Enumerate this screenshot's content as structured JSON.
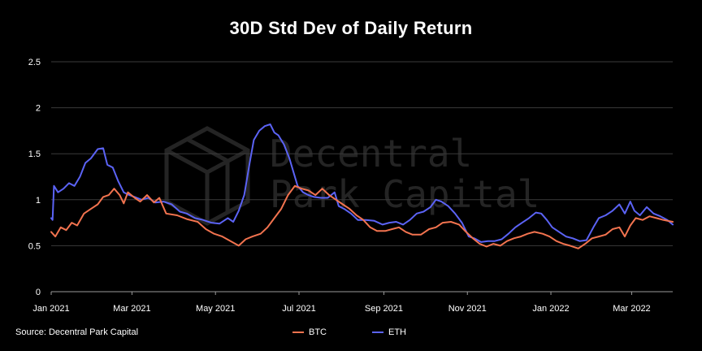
{
  "chart_data": {
    "type": "line",
    "title": "30D Std Dev of Daily Return",
    "xlabel": "",
    "ylabel": "",
    "source": "Source: Decentral Park Capital",
    "watermark": [
      "Decentral",
      "Park Capital"
    ],
    "ylim": [
      0,
      2.5
    ],
    "yticks": [
      "0",
      "0.5",
      "1",
      "1.5",
      "2",
      "2.5"
    ],
    "xticks": [
      {
        "label": "Jan 2021",
        "date": "2021-01-01"
      },
      {
        "label": "Mar 2021",
        "date": "2021-03-01"
      },
      {
        "label": "May 2021",
        "date": "2021-05-01"
      },
      {
        "label": "Jul 2021",
        "date": "2021-07-01"
      },
      {
        "label": "Sep 2021",
        "date": "2021-09-01"
      },
      {
        "label": "Nov 2021",
        "date": "2021-11-01"
      },
      {
        "label": "Jan 2022",
        "date": "2022-01-01"
      },
      {
        "label": "Mar 2022",
        "date": "2022-03-01"
      }
    ],
    "xlim": [
      "2021-01-01",
      "2022-03-31"
    ],
    "grid": "horizontal",
    "legend": "bottom-center",
    "series": [
      {
        "name": "BTC",
        "color": "#f2734f",
        "points": [
          [
            "2021-01-01",
            0.65
          ],
          [
            "2021-01-04",
            0.6
          ],
          [
            "2021-01-08",
            0.7
          ],
          [
            "2021-01-12",
            0.67
          ],
          [
            "2021-01-16",
            0.75
          ],
          [
            "2021-01-20",
            0.72
          ],
          [
            "2021-01-25",
            0.85
          ],
          [
            "2021-01-30",
            0.9
          ],
          [
            "2021-02-04",
            0.95
          ],
          [
            "2021-02-08",
            1.03
          ],
          [
            "2021-02-12",
            1.05
          ],
          [
            "2021-02-16",
            1.12
          ],
          [
            "2021-02-20",
            1.05
          ],
          [
            "2021-02-23",
            0.96
          ],
          [
            "2021-02-26",
            1.08
          ],
          [
            "2021-03-03",
            1.02
          ],
          [
            "2021-03-07",
            0.98
          ],
          [
            "2021-03-12",
            1.05
          ],
          [
            "2021-03-17",
            0.97
          ],
          [
            "2021-03-21",
            1.02
          ],
          [
            "2021-03-26",
            0.85
          ],
          [
            "2021-04-03",
            0.83
          ],
          [
            "2021-04-10",
            0.79
          ],
          [
            "2021-04-18",
            0.76
          ],
          [
            "2021-04-24",
            0.68
          ],
          [
            "2021-04-30",
            0.63
          ],
          [
            "2021-05-06",
            0.6
          ],
          [
            "2021-05-12",
            0.55
          ],
          [
            "2021-05-18",
            0.5
          ],
          [
            "2021-05-23",
            0.57
          ],
          [
            "2021-05-28",
            0.6
          ],
          [
            "2021-06-03",
            0.63
          ],
          [
            "2021-06-08",
            0.7
          ],
          [
            "2021-06-13",
            0.8
          ],
          [
            "2021-06-18",
            0.9
          ],
          [
            "2021-06-23",
            1.05
          ],
          [
            "2021-06-28",
            1.15
          ],
          [
            "2021-07-03",
            1.12
          ],
          [
            "2021-07-08",
            1.1
          ],
          [
            "2021-07-13",
            1.05
          ],
          [
            "2021-07-18",
            1.12
          ],
          [
            "2021-07-23",
            1.05
          ],
          [
            "2021-07-28",
            1.0
          ],
          [
            "2021-08-02",
            0.95
          ],
          [
            "2021-08-07",
            0.9
          ],
          [
            "2021-08-12",
            0.83
          ],
          [
            "2021-08-17",
            0.78
          ],
          [
            "2021-08-22",
            0.7
          ],
          [
            "2021-08-27",
            0.66
          ],
          [
            "2021-09-02",
            0.66
          ],
          [
            "2021-09-07",
            0.68
          ],
          [
            "2021-09-12",
            0.7
          ],
          [
            "2021-09-17",
            0.65
          ],
          [
            "2021-09-22",
            0.62
          ],
          [
            "2021-09-28",
            0.62
          ],
          [
            "2021-10-04",
            0.68
          ],
          [
            "2021-10-09",
            0.7
          ],
          [
            "2021-10-14",
            0.75
          ],
          [
            "2021-10-20",
            0.76
          ],
          [
            "2021-10-26",
            0.73
          ],
          [
            "2021-10-31",
            0.65
          ],
          [
            "2021-11-05",
            0.58
          ],
          [
            "2021-11-10",
            0.52
          ],
          [
            "2021-11-15",
            0.49
          ],
          [
            "2021-11-20",
            0.52
          ],
          [
            "2021-11-25",
            0.5
          ],
          [
            "2021-11-30",
            0.55
          ],
          [
            "2021-12-05",
            0.58
          ],
          [
            "2021-12-10",
            0.6
          ],
          [
            "2021-12-15",
            0.63
          ],
          [
            "2021-12-20",
            0.65
          ],
          [
            "2021-12-26",
            0.63
          ],
          [
            "2021-12-31",
            0.6
          ],
          [
            "2022-01-05",
            0.55
          ],
          [
            "2022-01-10",
            0.52
          ],
          [
            "2022-01-15",
            0.5
          ],
          [
            "2022-01-21",
            0.47
          ],
          [
            "2022-01-26",
            0.52
          ],
          [
            "2022-01-31",
            0.58
          ],
          [
            "2022-02-05",
            0.6
          ],
          [
            "2022-02-10",
            0.62
          ],
          [
            "2022-02-15",
            0.68
          ],
          [
            "2022-02-20",
            0.7
          ],
          [
            "2022-02-24",
            0.6
          ],
          [
            "2022-02-28",
            0.72
          ],
          [
            "2022-03-04",
            0.8
          ],
          [
            "2022-03-09",
            0.78
          ],
          [
            "2022-03-14",
            0.82
          ],
          [
            "2022-03-19",
            0.8
          ],
          [
            "2022-03-24",
            0.78
          ],
          [
            "2022-03-31",
            0.76
          ]
        ]
      },
      {
        "name": "ETH",
        "color": "#5b63f5",
        "points": [
          [
            "2021-01-01",
            0.8
          ],
          [
            "2021-01-02",
            0.78
          ],
          [
            "2021-01-03",
            1.15
          ],
          [
            "2021-01-06",
            1.08
          ],
          [
            "2021-01-10",
            1.12
          ],
          [
            "2021-01-14",
            1.18
          ],
          [
            "2021-01-18",
            1.15
          ],
          [
            "2021-01-22",
            1.25
          ],
          [
            "2021-01-26",
            1.4
          ],
          [
            "2021-01-30",
            1.45
          ],
          [
            "2021-02-04",
            1.55
          ],
          [
            "2021-02-08",
            1.56
          ],
          [
            "2021-02-11",
            1.38
          ],
          [
            "2021-02-15",
            1.35
          ],
          [
            "2021-02-19",
            1.2
          ],
          [
            "2021-02-23",
            1.08
          ],
          [
            "2021-02-27",
            1.05
          ],
          [
            "2021-03-03",
            1.03
          ],
          [
            "2021-03-08",
            1.0
          ],
          [
            "2021-03-13",
            1.02
          ],
          [
            "2021-03-18",
            0.97
          ],
          [
            "2021-03-24",
            0.98
          ],
          [
            "2021-03-30",
            0.95
          ],
          [
            "2021-04-05",
            0.87
          ],
          [
            "2021-04-10",
            0.85
          ],
          [
            "2021-04-16",
            0.8
          ],
          [
            "2021-04-22",
            0.78
          ],
          [
            "2021-04-28",
            0.75
          ],
          [
            "2021-05-04",
            0.74
          ],
          [
            "2021-05-10",
            0.8
          ],
          [
            "2021-05-14",
            0.76
          ],
          [
            "2021-05-18",
            0.88
          ],
          [
            "2021-05-22",
            1.05
          ],
          [
            "2021-05-26",
            1.4
          ],
          [
            "2021-05-29",
            1.65
          ],
          [
            "2021-06-02",
            1.75
          ],
          [
            "2021-06-06",
            1.8
          ],
          [
            "2021-06-10",
            1.82
          ],
          [
            "2021-06-13",
            1.73
          ],
          [
            "2021-06-16",
            1.7
          ],
          [
            "2021-06-20",
            1.6
          ],
          [
            "2021-06-24",
            1.45
          ],
          [
            "2021-06-27",
            1.3
          ],
          [
            "2021-06-30",
            1.15
          ],
          [
            "2021-07-04",
            1.08
          ],
          [
            "2021-07-08",
            1.05
          ],
          [
            "2021-07-12",
            1.03
          ],
          [
            "2021-07-17",
            1.02
          ],
          [
            "2021-07-22",
            1.02
          ],
          [
            "2021-07-27",
            1.08
          ],
          [
            "2021-07-30",
            0.93
          ],
          [
            "2021-08-03",
            0.9
          ],
          [
            "2021-08-08",
            0.85
          ],
          [
            "2021-08-13",
            0.78
          ],
          [
            "2021-08-19",
            0.78
          ],
          [
            "2021-08-25",
            0.77
          ],
          [
            "2021-08-31",
            0.73
          ],
          [
            "2021-09-05",
            0.75
          ],
          [
            "2021-09-10",
            0.76
          ],
          [
            "2021-09-15",
            0.73
          ],
          [
            "2021-09-20",
            0.78
          ],
          [
            "2021-09-25",
            0.85
          ],
          [
            "2021-09-30",
            0.87
          ],
          [
            "2021-10-05",
            0.92
          ],
          [
            "2021-10-09",
            1.0
          ],
          [
            "2021-10-13",
            0.98
          ],
          [
            "2021-10-18",
            0.93
          ],
          [
            "2021-10-23",
            0.85
          ],
          [
            "2021-10-28",
            0.75
          ],
          [
            "2021-11-02",
            0.6
          ],
          [
            "2021-11-06",
            0.58
          ],
          [
            "2021-11-11",
            0.54
          ],
          [
            "2021-11-16",
            0.55
          ],
          [
            "2021-11-21",
            0.55
          ],
          [
            "2021-11-26",
            0.57
          ],
          [
            "2021-12-01",
            0.63
          ],
          [
            "2021-12-06",
            0.7
          ],
          [
            "2021-12-11",
            0.75
          ],
          [
            "2021-12-16",
            0.8
          ],
          [
            "2021-12-21",
            0.86
          ],
          [
            "2021-12-25",
            0.85
          ],
          [
            "2021-12-29",
            0.78
          ],
          [
            "2022-01-02",
            0.7
          ],
          [
            "2022-01-07",
            0.65
          ],
          [
            "2022-01-12",
            0.6
          ],
          [
            "2022-01-17",
            0.58
          ],
          [
            "2022-01-22",
            0.55
          ],
          [
            "2022-01-27",
            0.56
          ],
          [
            "2022-02-01",
            0.7
          ],
          [
            "2022-02-05",
            0.8
          ],
          [
            "2022-02-10",
            0.83
          ],
          [
            "2022-02-15",
            0.88
          ],
          [
            "2022-02-20",
            0.95
          ],
          [
            "2022-02-24",
            0.85
          ],
          [
            "2022-02-28",
            0.98
          ],
          [
            "2022-03-03",
            0.88
          ],
          [
            "2022-03-07",
            0.83
          ],
          [
            "2022-03-12",
            0.92
          ],
          [
            "2022-03-17",
            0.85
          ],
          [
            "2022-03-22",
            0.82
          ],
          [
            "2022-03-27",
            0.78
          ],
          [
            "2022-03-31",
            0.73
          ]
        ]
      }
    ]
  }
}
